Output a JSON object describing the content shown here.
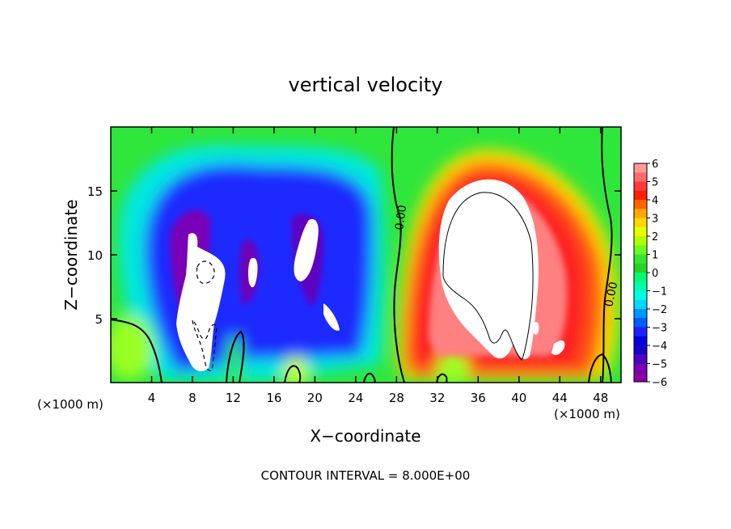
{
  "chart_data": {
    "type": "heatmap",
    "title": "vertical velocity",
    "xlabel": "X−coordinate",
    "ylabel": "Z−coordinate",
    "x_unit_left": "(×1000 m)",
    "x_unit_right": "(×1000 m)",
    "xlim": [
      0,
      50
    ],
    "ylim": [
      0,
      20
    ],
    "x_ticks": [
      4,
      8,
      12,
      16,
      20,
      24,
      28,
      32,
      36,
      40,
      44,
      48
    ],
    "y_ticks": [
      5,
      10,
      15
    ],
    "colorbar": {
      "min": -6,
      "max": 6,
      "labels": [
        "6",
        "5",
        "4",
        "3",
        "2",
        "1",
        "0",
        "−1",
        "−2",
        "−3",
        "−4",
        "−5",
        "−6"
      ],
      "colors": [
        "#ff9a9a",
        "#ff6a6a",
        "#ff3a3a",
        "#ff1e00",
        "#ff6400",
        "#ffa800",
        "#ffd800",
        "#e6ff00",
        "#b4ff00",
        "#6aff1e",
        "#33e633",
        "#28d228",
        "#00ff6e",
        "#00ffaa",
        "#00ffe0",
        "#00d8ff",
        "#0096ff",
        "#005aff",
        "#1e1eff",
        "#0000e0",
        "#1a00c8",
        "#5000c0",
        "#7800b4",
        "#8a00a8"
      ]
    },
    "contour_labels": [
      "0.00",
      "0.00"
    ],
    "footer": "CONTOUR INTERVAL = 8.000E+00",
    "field_regions": [
      {
        "kind": "downdraft",
        "x": 14,
        "z": 11,
        "rx": 9,
        "rz": 7.5,
        "w": -5
      },
      {
        "kind": "downdraft",
        "x": 10,
        "z": 5,
        "rx": 3,
        "rz": 4,
        "w": -7
      },
      {
        "kind": "downdraft",
        "x": 18.5,
        "z": 10,
        "rx": 1.5,
        "rz": 4.5,
        "w": -7
      },
      {
        "kind": "updraft",
        "x": 37,
        "z": 10,
        "rx": 9,
        "rz": 8,
        "w": 6
      },
      {
        "kind": "updraft",
        "x": 37,
        "z": 11,
        "rx": 5,
        "rz": 5,
        "w": 8
      }
    ]
  }
}
